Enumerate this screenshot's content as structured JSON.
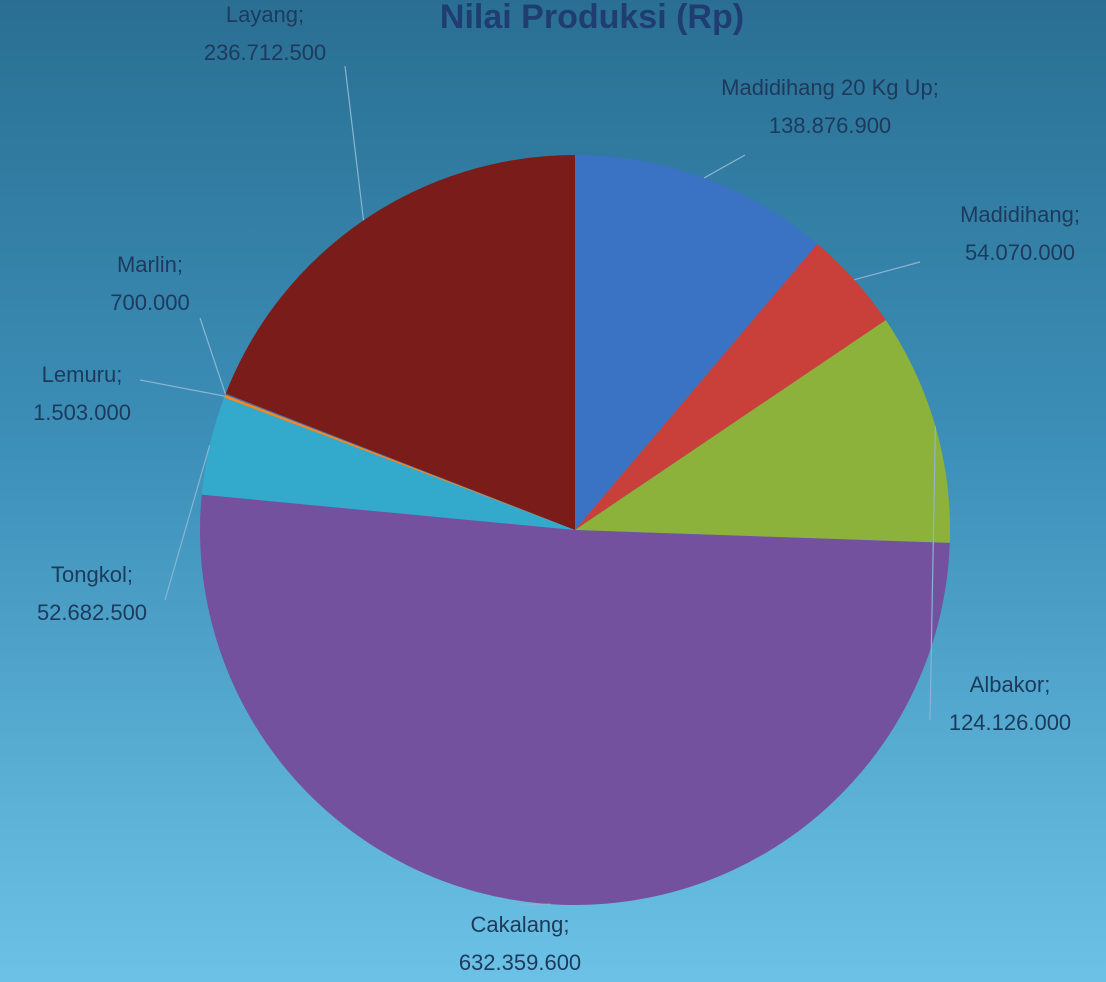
{
  "chart_data": {
    "type": "pie",
    "title": "Nilai Produksi (Rp)",
    "categories": [
      "Madidihang 20 Kg Up",
      "Madidihang",
      "Albakor",
      "Cakalang",
      "Tongkol",
      "Lemuru",
      "Marlin",
      "Layang"
    ],
    "values": [
      138876900,
      54070000,
      124126000,
      632359600,
      52682500,
      1503000,
      700000,
      236712500
    ],
    "value_labels": [
      "138.876.900",
      "54.070.000",
      "124.126.000",
      "632.359.600",
      "52.682.500",
      "1.503.000",
      "700.000",
      "236.712.500"
    ],
    "label_separator": ";",
    "colors": [
      "#3a72c4",
      "#c9403a",
      "#8db23c",
      "#74519e",
      "#33a9cb",
      "#f08a24",
      "#4f6fb2",
      "#7a1d1a"
    ]
  }
}
